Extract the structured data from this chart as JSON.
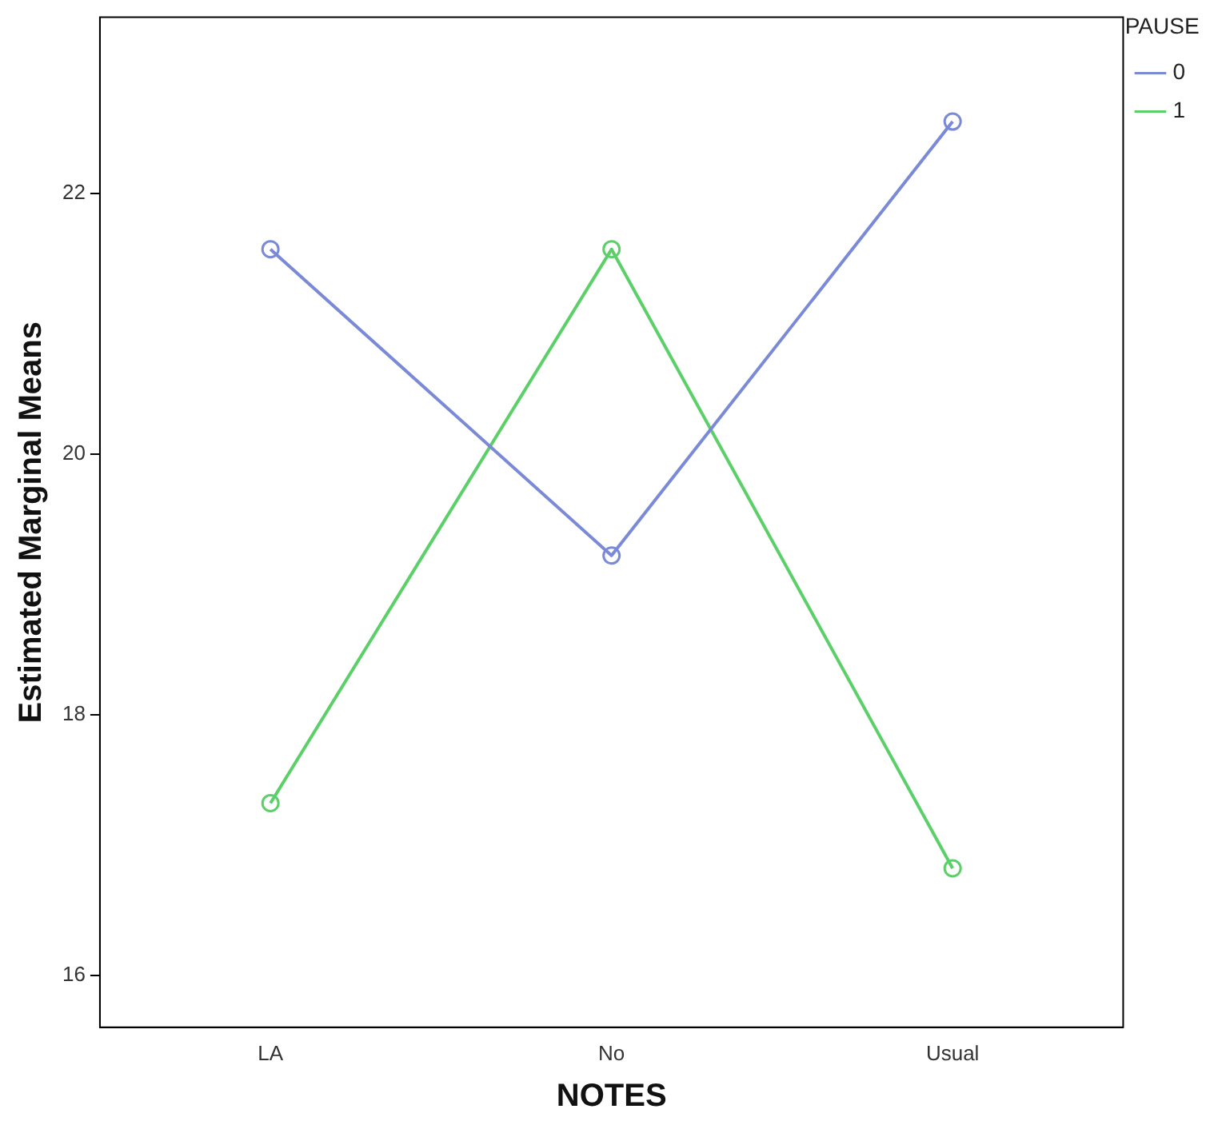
{
  "chart_data": {
    "type": "line",
    "xlabel": "NOTES",
    "ylabel": "Estimated Marginal Means",
    "legend_title": "PAUSE",
    "categories": [
      "LA",
      "No",
      "Usual"
    ],
    "series": [
      {
        "name": "0",
        "color": "#7b8ad6",
        "values": [
          21.57,
          19.22,
          22.55
        ]
      },
      {
        "name": "1",
        "color": "#5cd068",
        "values": [
          17.32,
          21.57,
          16.82
        ]
      }
    ],
    "ylim": [
      15.6,
      23.35
    ],
    "yticks": [
      16,
      18,
      20,
      22
    ],
    "grid": false,
    "legend": "right",
    "marker": "circle",
    "line_style": "solid"
  }
}
